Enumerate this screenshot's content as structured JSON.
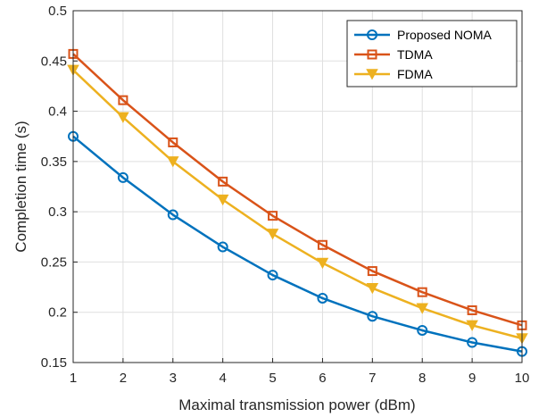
{
  "chart_data": {
    "type": "line",
    "title": "",
    "xlabel": "Maximal transmission power (dBm)",
    "ylabel": "Completion time (s)",
    "xlim": [
      1,
      10
    ],
    "ylim": [
      0.15,
      0.5
    ],
    "xticks": [
      "1",
      "2",
      "3",
      "4",
      "5",
      "6",
      "7",
      "8",
      "9",
      "10"
    ],
    "yticks": [
      "0.15",
      "0.2",
      "0.25",
      "0.3",
      "0.35",
      "0.4",
      "0.45",
      "0.5"
    ],
    "grid": true,
    "legend_position": "top-right",
    "x": [
      1,
      2,
      3,
      4,
      5,
      6,
      7,
      8,
      9,
      10
    ],
    "series": [
      {
        "name": "Proposed NOMA",
        "color": "#0072BD",
        "marker": "circle",
        "values": [
          0.375,
          0.334,
          0.297,
          0.265,
          0.237,
          0.214,
          0.196,
          0.182,
          0.17,
          0.161
        ]
      },
      {
        "name": "TDMA",
        "color": "#D95319",
        "marker": "square",
        "values": [
          0.457,
          0.411,
          0.369,
          0.33,
          0.296,
          0.267,
          0.241,
          0.22,
          0.202,
          0.187
        ]
      },
      {
        "name": "FDMA",
        "color": "#EDB120",
        "marker": "triangle-down",
        "values": [
          0.441,
          0.394,
          0.35,
          0.312,
          0.278,
          0.249,
          0.224,
          0.204,
          0.187,
          0.174
        ]
      }
    ]
  }
}
